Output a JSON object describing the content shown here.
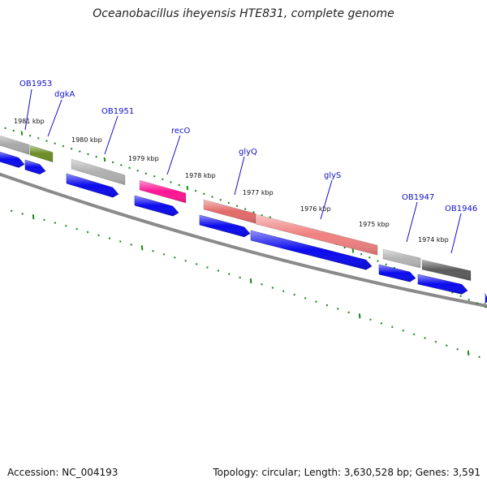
{
  "title": "Oceanobacillus iheyensis HTE831, complete genome",
  "footer": {
    "accession": "Accession: NC_004193",
    "stats": "Topology: circular; Length: 3,630,528 bp; Genes: 3,591"
  },
  "colors": {
    "backbone": "#8a8a8a",
    "tick": "#1a8a1a",
    "arrow_blue": "#0a0aee",
    "label_blue": "#1010c8"
  },
  "kbp_labels": [
    "1981 kbp",
    "1980 kbp",
    "1979 kbp",
    "1978 kbp",
    "1977 kbp",
    "1976 kbp",
    "1975 kbp",
    "1974 kbp"
  ],
  "genes": [
    {
      "name": "OB1953",
      "label": "OB1953",
      "color": "#a8a8a8"
    },
    {
      "name": "dgkA",
      "label": "dgkA",
      "color": "#6b8e23"
    },
    {
      "name": "OB1951",
      "label": "OB1951",
      "color": "#b0b0b0"
    },
    {
      "name": "recO",
      "label": "recO",
      "color": "#ff1493"
    },
    {
      "name": "glyQ",
      "label": "glyQ",
      "color": "#e46a6a"
    },
    {
      "name": "glyS",
      "label": "glyS",
      "color": "#f08080"
    },
    {
      "name": "OB1947",
      "label": "OB1947",
      "color": "#b4b4b4"
    },
    {
      "name": "OB1946",
      "label": "OB1946",
      "color": "#5a5a5a"
    }
  ]
}
